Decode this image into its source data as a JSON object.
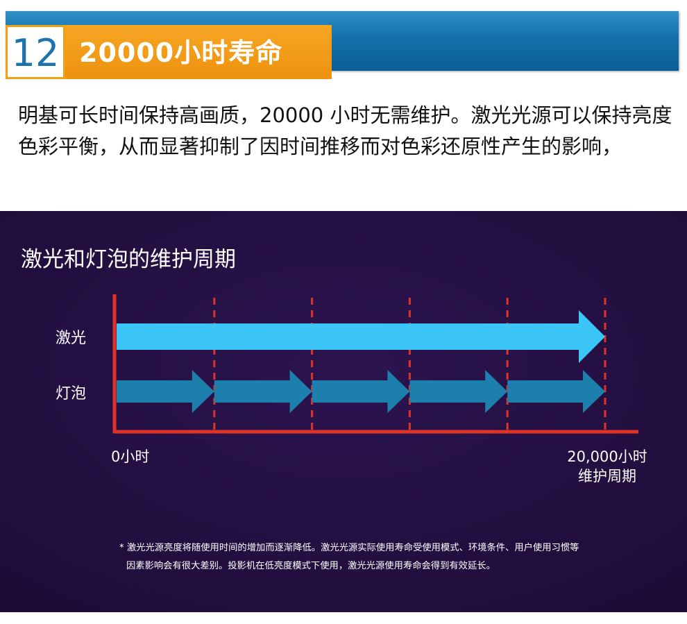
{
  "header": {
    "number": "12",
    "title": "20000小时寿命"
  },
  "intro_text": "明基可长时间保持高画质，20000 小时无需维护。激光光源可以保持亮度色彩平衡，从而显著抑制了因时间推移而对色彩还原性产生的影响，",
  "colors": {
    "panel_bg": "#24103f",
    "axis": "#e03226",
    "divider": "#e03226",
    "laser_arrow": "#3cc6f7",
    "bulb_arrow": "#1c7fac"
  },
  "chart_data": {
    "type": "bar",
    "title": "激光和灯泡的维护周期",
    "x_start_label": "0小时",
    "x_end_label_line1": "20,000小时",
    "x_end_label_line2": "维护周期",
    "xlim": [
      0,
      20000
    ],
    "dividers": [
      4000,
      8000,
      12000,
      16000,
      20000
    ],
    "series": [
      {
        "name": "激光",
        "segments": [
          [
            0,
            20000
          ]
        ]
      },
      {
        "name": "灯泡",
        "segments": [
          [
            0,
            4000
          ],
          [
            4000,
            8000
          ],
          [
            8000,
            12000
          ],
          [
            12000,
            16000
          ],
          [
            16000,
            20000
          ]
        ]
      }
    ],
    "footnote_line1": "* 激光光源亮度将随使用时间的增加而逐渐降低。激光光源实际使用寿命受使用模式、环境条件、用户使用习惯等",
    "footnote_line2": "因素影响会有很大差别。投影机在低亮度模式下使用，激光光源使用寿命会得到有效延长。"
  }
}
